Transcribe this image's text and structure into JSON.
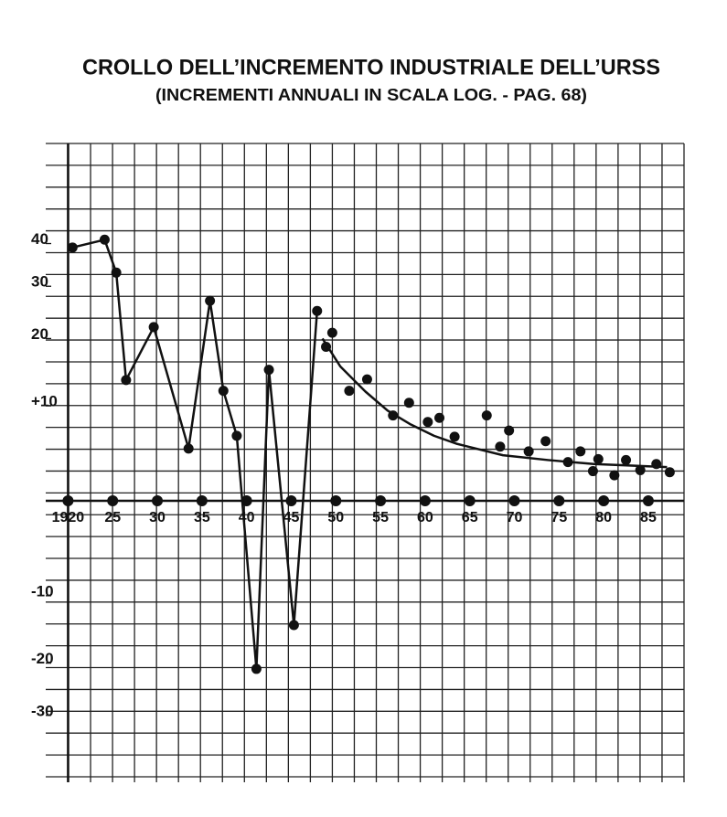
{
  "chart_data": {
    "type": "line",
    "title": "CROLLO DELL’INCREMENTO INDUSTRIALE DELL’URSS",
    "subtitle": "(INCREMENTI ANNUALI IN SCALA LOG. - PAG. 68)",
    "yscale": "log",
    "color": "#111111",
    "xlim": [
      1917.5,
      1989
    ],
    "ylim": [
      -45,
      72
    ],
    "xticks": [
      1920,
      {
        "value": 1925,
        "label": "25"
      },
      {
        "value": 1930,
        "label": "30"
      },
      {
        "value": 1935,
        "label": "35"
      },
      {
        "value": 1940,
        "label": "40"
      },
      {
        "value": 1945,
        "label": "45"
      },
      {
        "value": 1950,
        "label": "50"
      },
      {
        "value": 1955,
        "label": "55"
      },
      {
        "value": 1960,
        "label": "60"
      },
      {
        "value": 1965,
        "label": "65"
      },
      {
        "value": 1970,
        "label": "70"
      },
      {
        "value": 1975,
        "label": "75"
      },
      {
        "value": 1980,
        "label": "80"
      },
      {
        "value": 1985,
        "label": "85"
      }
    ],
    "yticks": [
      40,
      30,
      20,
      {
        "value": 10,
        "label": "+10"
      },
      -10,
      -20,
      -30
    ],
    "series": [
      {
        "mode": "lines+markers",
        "color": "#111111",
        "x": [
          1920.5,
          1924.1,
          1925.4,
          1926.5,
          1929.6,
          1933.5,
          1935.9,
          1937.4,
          1938.9,
          1941.1,
          1942.5,
          1945.3,
          1947.9
        ],
        "values": [
          39,
          41,
          33,
          13.5,
          22,
          5,
          27,
          12,
          6.4,
          -21,
          15,
          -14,
          25
        ]
      },
      {
        "mode": "markers",
        "color": "#111111",
        "x": [
          1948.9,
          1949.6,
          1951.5,
          1953.5,
          1956.4,
          1958.2,
          1960.3,
          1961.6,
          1963.3,
          1966.9,
          1968.4,
          1969.4,
          1971.6,
          1973.5,
          1976,
          1977.4,
          1978.8,
          1979.4,
          1981.2,
          1982.5,
          1984.1,
          1985.9,
          1987.4
        ],
        "values": [
          18.6,
          21,
          12,
          13.6,
          8.8,
          10.4,
          8,
          8.5,
          6.3,
          8.8,
          5.2,
          7,
          4.7,
          5.8,
          3.6,
          4.7,
          2.7,
          3.9,
          2.3,
          3.8,
          2.8,
          3.4,
          2.6
        ]
      },
      {
        "mode": "lines",
        "color": "#111111",
        "x": [
          1948.5,
          1950.5,
          1953.3,
          1955.8,
          1958.4,
          1961,
          1963.6,
          1968.7,
          1973.8,
          1978.9,
          1987.1
        ],
        "values": [
          20,
          15.5,
          11.9,
          9.4,
          7.7,
          6.4,
          5.5,
          4.3,
          3.8,
          3.4,
          3.1
        ]
      }
    ]
  }
}
